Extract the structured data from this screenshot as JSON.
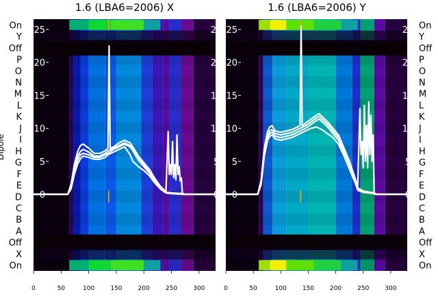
{
  "chart_data": [
    {
      "type": "heatmap",
      "title": "1.6 (LBA6=2006) X",
      "ylabel": "Dipole",
      "row_labels": [
        "On",
        "Y",
        "Off",
        "P",
        "O",
        "N",
        "M",
        "L",
        "K",
        "J",
        "I",
        "H",
        "G",
        "F",
        "E",
        "D",
        "C",
        "B",
        "A",
        "Off",
        "X",
        "On"
      ],
      "xlim": [
        0,
        330
      ],
      "x_ticks": [
        0,
        50,
        100,
        150,
        200,
        250,
        300
      ],
      "overlay_ylim": [
        0,
        26
      ],
      "overlay_ticks": [
        0,
        5,
        10,
        15,
        20,
        25
      ],
      "bands": [
        {
          "x": [
            0,
            65
          ],
          "color": "#0a0010"
        },
        {
          "x": [
            65,
            72
          ],
          "color": "#2a005a"
        },
        {
          "x": [
            72,
            85
          ],
          "color": "#0a1aa8"
        },
        {
          "x": [
            85,
            100
          ],
          "color": "#0a3cdc"
        },
        {
          "x": [
            100,
            130
          ],
          "color": "#0070e0"
        },
        {
          "x": [
            130,
            150
          ],
          "color": "#0a58e8"
        },
        {
          "x": [
            150,
            195
          ],
          "color": "#0088dc"
        },
        {
          "x": [
            195,
            215
          ],
          "color": "#1a40d8"
        },
        {
          "x": [
            215,
            235
          ],
          "color": "#3a18b8"
        },
        {
          "x": [
            235,
            245
          ],
          "color": "#5a0aa0"
        },
        {
          "x": [
            245,
            268
          ],
          "color": "#2a2cc8"
        },
        {
          "x": [
            268,
            290
          ],
          "color": "#6a0a90"
        },
        {
          "x": [
            290,
            330
          ],
          "color": "#25003c"
        }
      ],
      "top_bands": [
        {
          "x": [
            65,
            100
          ],
          "color": "#00b070"
        },
        {
          "x": [
            100,
            140
          ],
          "color": "#10d830"
        },
        {
          "x": [
            140,
            200
          ],
          "color": "#40e020"
        },
        {
          "x": [
            200,
            230
          ],
          "color": "#10a0a0"
        }
      ],
      "series": [
        {
          "x": [
            0,
            62,
            68,
            74,
            80,
            85,
            90,
            100,
            110,
            120,
            130,
            135,
            137,
            139,
            145,
            155,
            165,
            175,
            180,
            190,
            200,
            210,
            220,
            230,
            240,
            244,
            246,
            248,
            250,
            252,
            254,
            256,
            258,
            260,
            262,
            264,
            266,
            268,
            270,
            275,
            330
          ],
          "y": [
            0,
            0,
            1.5,
            4.5,
            6.5,
            7.4,
            7.6,
            7,
            6.2,
            6.2,
            6.6,
            7,
            22.5,
            7,
            7.2,
            7.8,
            8.2,
            7.8,
            7.2,
            5.8,
            4.8,
            3.8,
            2.4,
            1.2,
            0.4,
            9.5,
            3,
            4.5,
            3,
            8,
            2.5,
            4.5,
            2.2,
            9,
            3,
            4.2,
            2,
            2.5,
            0,
            0,
            0
          ]
        },
        {
          "x": [
            0,
            62,
            68,
            74,
            80,
            85,
            90,
            100,
            110,
            120,
            130,
            135,
            145,
            155,
            165,
            175,
            180,
            190,
            200,
            210,
            220,
            230,
            240,
            250,
            270,
            275,
            330
          ],
          "y": [
            0,
            0,
            1.2,
            4,
            5.8,
            6.5,
            6.8,
            6.4,
            5.8,
            5.8,
            6.2,
            6.6,
            7,
            7.4,
            7.8,
            7.4,
            6.8,
            5.5,
            4.5,
            3.5,
            2.2,
            1,
            0.3,
            0.2,
            0.1,
            0,
            0
          ]
        },
        {
          "x": [
            0,
            62,
            68,
            74,
            80,
            85,
            90,
            100,
            110,
            120,
            130,
            135,
            145,
            155,
            165,
            175,
            180,
            190,
            200,
            210,
            220,
            230,
            240,
            250,
            270,
            275,
            330
          ],
          "y": [
            0,
            0,
            1,
            3.6,
            5.2,
            6,
            6.2,
            6,
            5.6,
            5.6,
            6,
            6.2,
            6.8,
            7.2,
            7.6,
            7.2,
            6.6,
            5.2,
            4.2,
            3.2,
            2,
            0.9,
            0.3,
            0.2,
            0.1,
            0,
            0
          ]
        },
        {
          "x": [
            0,
            62,
            68,
            74,
            80,
            85,
            90,
            100,
            110,
            120,
            130,
            135,
            145,
            155,
            165,
            175,
            180,
            190,
            200,
            210,
            220,
            230,
            240,
            250,
            270,
            275,
            330
          ],
          "y": [
            0,
            0,
            0.8,
            3,
            4.6,
            5.4,
            5.8,
            5.6,
            5.3,
            5.3,
            5.6,
            6,
            6.4,
            6.8,
            7.2,
            6,
            5,
            4.2,
            3.6,
            2.8,
            1.7,
            0.8,
            0.2,
            0.1,
            0,
            0,
            0
          ]
        }
      ]
    },
    {
      "type": "heatmap",
      "title": "1.6 (LBA6=2006) Y",
      "row_labels": [
        "On",
        "Y",
        "Off",
        "P",
        "O",
        "N",
        "M",
        "L",
        "K",
        "J",
        "I",
        "H",
        "G",
        "F",
        "E",
        "D",
        "C",
        "B",
        "A",
        "Off",
        "X",
        "On"
      ],
      "xlim": [
        0,
        330
      ],
      "x_ticks": [
        0,
        50,
        100,
        150,
        200,
        250,
        300
      ],
      "overlay_ylim": [
        0,
        26
      ],
      "overlay_ticks": [
        0,
        5,
        10,
        15,
        20,
        25
      ],
      "bands": [
        {
          "x": [
            0,
            60
          ],
          "color": "#0a0010"
        },
        {
          "x": [
            60,
            68
          ],
          "color": "#2a005a"
        },
        {
          "x": [
            68,
            85
          ],
          "color": "#0a5ad0"
        },
        {
          "x": [
            85,
            110
          ],
          "color": "#0a9cd8"
        },
        {
          "x": [
            110,
            150
          ],
          "color": "#00a8c8"
        },
        {
          "x": [
            150,
            200
          ],
          "color": "#00b4b4"
        },
        {
          "x": [
            200,
            230
          ],
          "color": "#0078d8"
        },
        {
          "x": [
            230,
            245
          ],
          "color": "#1a30c8"
        },
        {
          "x": [
            245,
            270
          ],
          "color": "#00a070"
        },
        {
          "x": [
            270,
            290
          ],
          "color": "#5a0aa0"
        },
        {
          "x": [
            290,
            330
          ],
          "color": "#25003c"
        }
      ],
      "top_bands": [
        {
          "x": [
            60,
            80
          ],
          "color": "#a0e000"
        },
        {
          "x": [
            80,
            110
          ],
          "color": "#f0f000"
        },
        {
          "x": [
            110,
            160
          ],
          "color": "#60e000"
        },
        {
          "x": [
            160,
            210
          ],
          "color": "#20d040"
        },
        {
          "x": [
            210,
            240
          ],
          "color": "#10a0a0"
        }
      ],
      "series": [
        {
          "x": [
            0,
            58,
            64,
            70,
            76,
            80,
            84,
            90,
            100,
            110,
            120,
            130,
            135,
            137,
            139,
            145,
            155,
            165,
            170,
            175,
            185,
            195,
            205,
            215,
            225,
            235,
            240,
            244,
            246,
            248,
            250,
            252,
            254,
            256,
            258,
            260,
            262,
            264,
            266,
            268,
            270,
            275,
            330
          ],
          "y": [
            0,
            0,
            2,
            7,
            9.5,
            10.2,
            10.4,
            9.6,
            9.4,
            9.6,
            9.8,
            10.2,
            10.4,
            25.5,
            10.4,
            10.8,
            11.4,
            12,
            12.2,
            11.8,
            11,
            10,
            9,
            7,
            5,
            2.5,
            1.2,
            13,
            6,
            8,
            4,
            13.5,
            5,
            10.5,
            4,
            14,
            6,
            12,
            5,
            9,
            0,
            0,
            0
          ]
        },
        {
          "x": [
            0,
            58,
            64,
            70,
            76,
            80,
            84,
            90,
            100,
            110,
            120,
            130,
            135,
            145,
            155,
            165,
            170,
            175,
            185,
            195,
            205,
            215,
            225,
            235,
            240,
            250,
            270,
            275,
            330
          ],
          "y": [
            0,
            0,
            1.8,
            6.6,
            9,
            9.6,
            9.8,
            9.2,
            9,
            9.2,
            9.4,
            9.8,
            10,
            10.4,
            11,
            11.6,
            11.8,
            11.4,
            10.6,
            9.6,
            8.6,
            6.6,
            4.6,
            2.2,
            1,
            0.5,
            0.2,
            0,
            0
          ]
        },
        {
          "x": [
            0,
            58,
            64,
            70,
            76,
            80,
            84,
            90,
            100,
            110,
            120,
            130,
            135,
            145,
            155,
            165,
            170,
            175,
            185,
            195,
            205,
            215,
            225,
            235,
            240,
            250,
            270,
            275,
            330
          ],
          "y": [
            0,
            0,
            1.6,
            6.2,
            8.6,
            9.2,
            9.4,
            8.8,
            8.6,
            8.8,
            9,
            9.4,
            9.6,
            10,
            10.6,
            11.2,
            11.4,
            11,
            10.2,
            9.2,
            8.2,
            6.2,
            4.2,
            2,
            0.8,
            0.4,
            0.1,
            0,
            0
          ]
        },
        {
          "x": [
            0,
            58,
            64,
            70,
            76,
            80,
            84,
            90,
            100,
            110,
            120,
            130,
            135,
            145,
            155,
            165,
            170,
            175,
            185,
            195,
            205,
            215,
            225,
            235,
            240,
            250,
            270,
            275,
            330
          ],
          "y": [
            0,
            0,
            1.4,
            5.8,
            8.2,
            8.8,
            9,
            8.4,
            8.2,
            8.4,
            8.6,
            9,
            9.2,
            9.6,
            10,
            10.2,
            10,
            9.8,
            9.2,
            8.6,
            7.6,
            5.8,
            3.8,
            1.8,
            0.6,
            0.3,
            0.1,
            0,
            0
          ]
        }
      ]
    }
  ]
}
